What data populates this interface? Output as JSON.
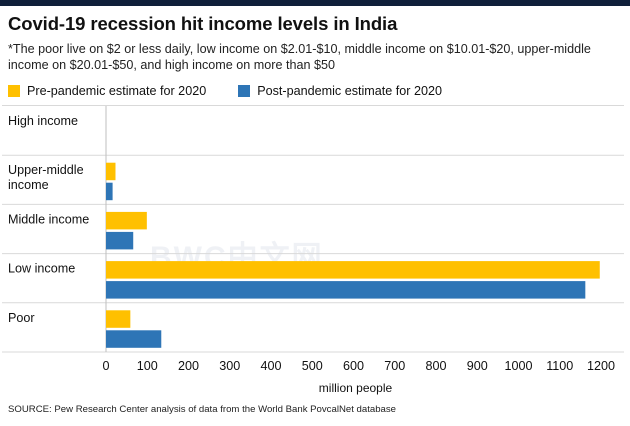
{
  "title": "Covid-19 recession hit income levels in India",
  "subtitle": "*The poor live on $2 or less daily, low income on $2.01-$10, middle income on $10.01-$20, upper-middle income on $20.01-$50, and high income on more than $50",
  "source": "SOURCE: Pew Research Center analysis of data from the World Bank PovcalNet database",
  "watermark": "BWC中文网",
  "colors": {
    "pre": "#ffc000",
    "post": "#2e75b6",
    "topbar": "#0f1f3a",
    "grid": "#d9d9d9"
  },
  "chart_data": {
    "type": "bar",
    "orientation": "horizontal",
    "title": "Covid-19 recession hit income levels in India",
    "xlabel": "million people",
    "ylabel": "",
    "xlim": [
      0,
      1200
    ],
    "xticks": [
      0,
      100,
      200,
      300,
      400,
      500,
      600,
      700,
      800,
      900,
      1000,
      1100,
      1200
    ],
    "categories": [
      [
        "High income"
      ],
      [
        "Upper-middle",
        "income"
      ],
      [
        "Middle income"
      ],
      [
        "Low income"
      ],
      [
        "Poor"
      ]
    ],
    "series": [
      {
        "name": "Pre-pandemic estimate for 2020",
        "color": "#ffc000",
        "values": [
          0,
          23,
          99,
          1197,
          59
        ]
      },
      {
        "name": "Post-pandemic estimate for 2020",
        "color": "#2e75b6",
        "values": [
          0,
          16,
          66,
          1162,
          134
        ]
      }
    ],
    "legend": "top-left",
    "grid": true
  }
}
